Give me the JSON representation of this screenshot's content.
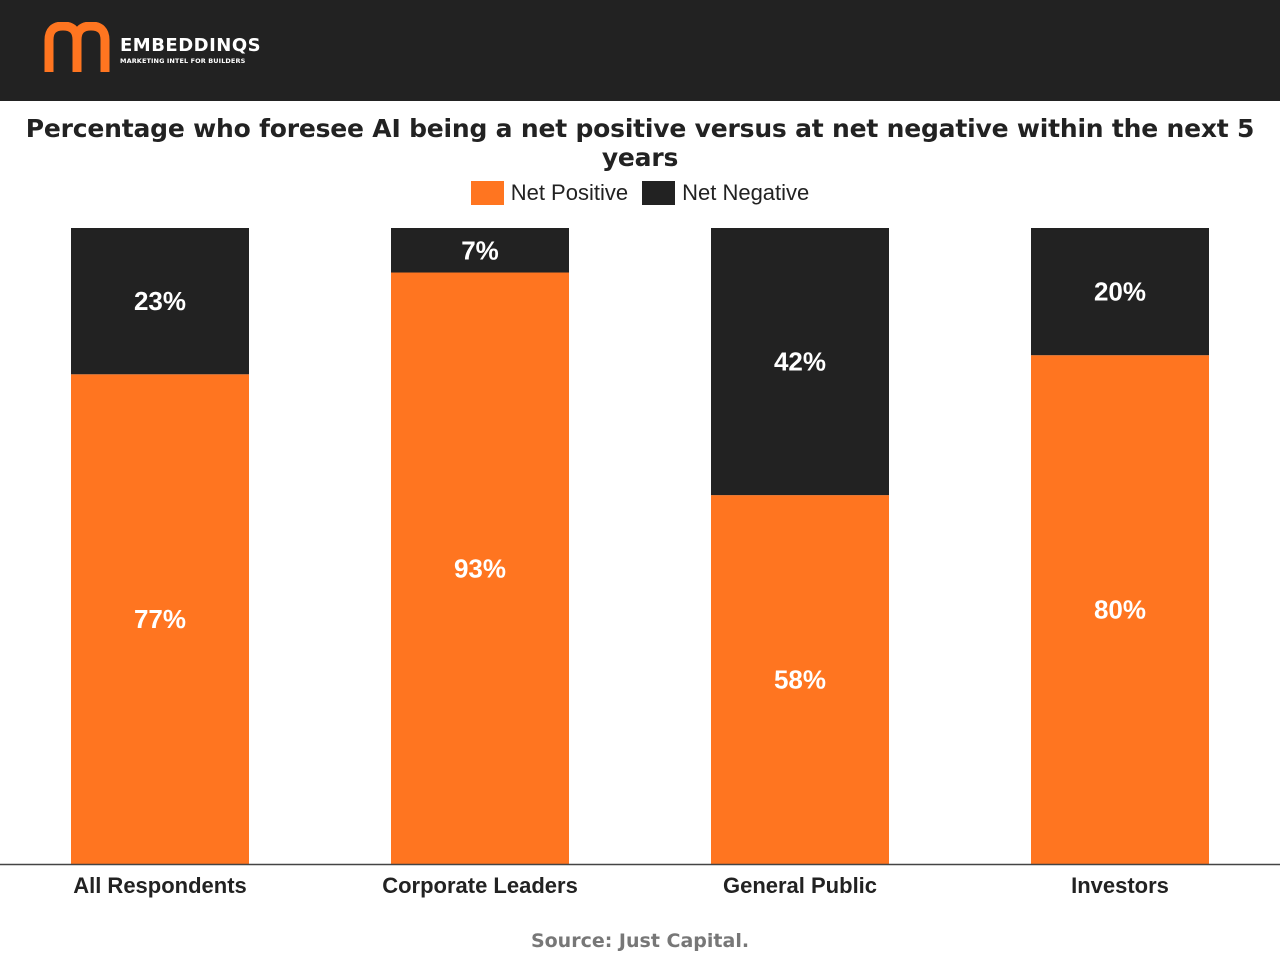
{
  "header": {
    "logo_name": "EMBEDDINQS",
    "logo_tagline": "MARKETING INTEL FOR BUILDERS"
  },
  "colors": {
    "positive": "#ff7520",
    "negative": "#222222",
    "header_bg": "#222222"
  },
  "chart_data": {
    "type": "bar",
    "stacked": true,
    "title": "Percentage who foresee AI being a net positive versus at net negative within the next 5 years",
    "categories": [
      "All Respondents",
      "Corporate Leaders",
      "General Public",
      "Investors"
    ],
    "series": [
      {
        "name": "Net Positive",
        "color": "#ff7520",
        "values": [
          77,
          93,
          58,
          80
        ],
        "labels": [
          "77%",
          "93%",
          "58%",
          "80%"
        ]
      },
      {
        "name": "Net Negative",
        "color": "#222222",
        "values": [
          23,
          7,
          42,
          20
        ],
        "labels": [
          "23%",
          "7%",
          "42%",
          "20%"
        ]
      }
    ],
    "ylim": [
      0,
      100
    ],
    "xlabel": "",
    "ylabel": "",
    "grid": false,
    "legend_position": "top-center"
  },
  "source": "Source: Just Capital."
}
